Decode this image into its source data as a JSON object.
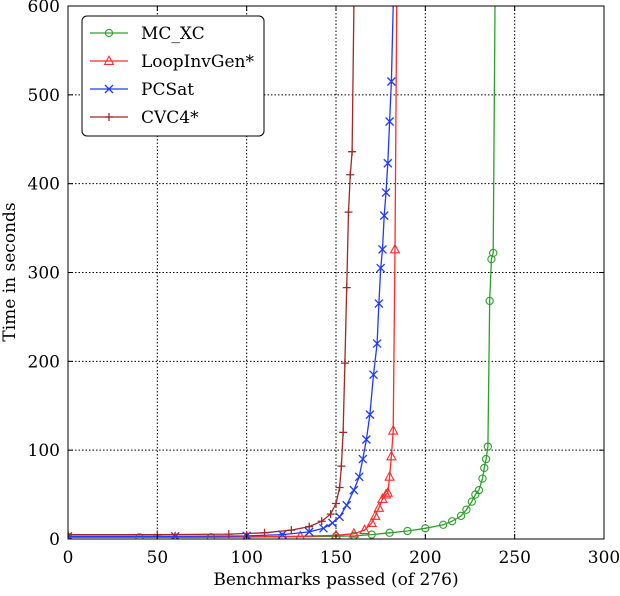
{
  "chart_data": {
    "type": "line",
    "title": "",
    "xlabel": "Benchmarks passed (of 276)",
    "ylabel": "Time in seconds",
    "xlim": [
      0,
      300
    ],
    "ylim": [
      0,
      600
    ],
    "x_ticks": [
      0,
      50,
      100,
      150,
      200,
      250,
      300
    ],
    "y_ticks": [
      0,
      100,
      200,
      300,
      400,
      500,
      600
    ],
    "grid": true,
    "legend_position": "top-left",
    "series": [
      {
        "name": "MC_XC",
        "color": "#2ca02c",
        "marker": "circle",
        "points": [
          [
            0,
            2
          ],
          [
            40,
            2
          ],
          [
            80,
            2
          ],
          [
            120,
            2.5
          ],
          [
            150,
            3
          ],
          [
            160,
            3.5
          ],
          [
            170,
            5
          ],
          [
            180,
            7
          ],
          [
            190,
            9
          ],
          [
            200,
            12
          ],
          [
            210,
            16
          ],
          [
            215,
            20
          ],
          [
            220,
            26
          ],
          [
            223,
            33
          ],
          [
            226,
            42
          ],
          [
            228,
            50
          ],
          [
            230,
            55
          ],
          [
            232,
            68
          ],
          [
            233,
            80
          ],
          [
            234,
            90
          ],
          [
            235,
            104
          ],
          [
            236,
            268
          ],
          [
            237,
            315
          ],
          [
            238,
            322
          ],
          [
            239,
            600
          ]
        ]
      },
      {
        "name": "LoopInvGen*",
        "color": "#ff2a2a",
        "marker": "triangle",
        "points": [
          [
            0,
            2
          ],
          [
            60,
            2
          ],
          [
            100,
            2.5
          ],
          [
            130,
            3
          ],
          [
            150,
            4
          ],
          [
            160,
            6
          ],
          [
            166,
            10
          ],
          [
            170,
            18
          ],
          [
            172,
            26
          ],
          [
            174,
            35
          ],
          [
            176,
            45
          ],
          [
            178,
            50
          ],
          [
            179,
            52
          ],
          [
            180,
            70
          ],
          [
            181,
            93
          ],
          [
            182,
            122
          ],
          [
            183,
            326
          ],
          [
            184,
            600
          ]
        ]
      },
      {
        "name": "PCSat",
        "color": "#1f3aff",
        "marker": "x",
        "points": [
          [
            0,
            3
          ],
          [
            60,
            3
          ],
          [
            100,
            3.5
          ],
          [
            120,
            5
          ],
          [
            135,
            8
          ],
          [
            143,
            12
          ],
          [
            148,
            18
          ],
          [
            152,
            25
          ],
          [
            156,
            38
          ],
          [
            160,
            55
          ],
          [
            163,
            70
          ],
          [
            165,
            90
          ],
          [
            167,
            112
          ],
          [
            169,
            140
          ],
          [
            171,
            185
          ],
          [
            173,
            220
          ],
          [
            174,
            265
          ],
          [
            175,
            305
          ],
          [
            176,
            326
          ],
          [
            177,
            364
          ],
          [
            178,
            390
          ],
          [
            179,
            423
          ],
          [
            180,
            470
          ],
          [
            181,
            515
          ],
          [
            182,
            600
          ]
        ]
      },
      {
        "name": "CVC4*",
        "color": "#a02828",
        "marker": "plus",
        "points": [
          [
            0,
            5
          ],
          [
            50,
            5
          ],
          [
            90,
            5.5
          ],
          [
            110,
            7
          ],
          [
            125,
            10
          ],
          [
            135,
            14
          ],
          [
            142,
            20
          ],
          [
            147,
            28
          ],
          [
            150,
            40
          ],
          [
            152,
            58
          ],
          [
            153,
            82
          ],
          [
            154,
            120
          ],
          [
            155,
            198
          ],
          [
            156,
            283
          ],
          [
            157,
            368
          ],
          [
            158,
            410
          ],
          [
            159,
            436
          ],
          [
            160,
            600
          ]
        ]
      }
    ]
  }
}
